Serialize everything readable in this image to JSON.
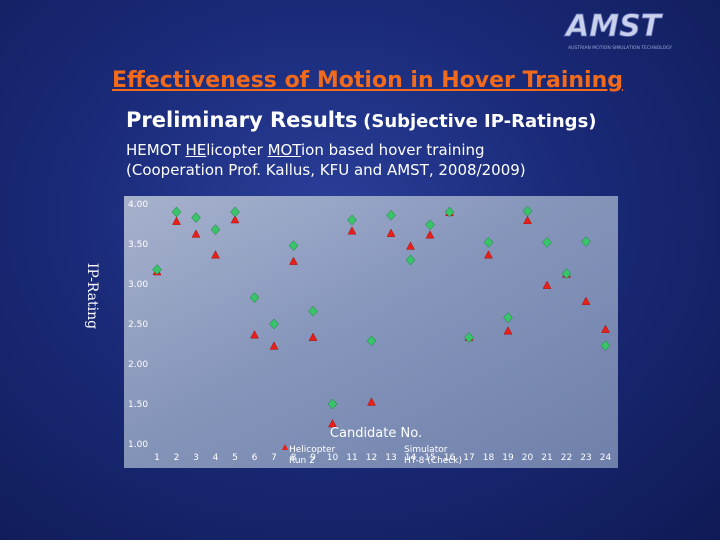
{
  "logo": {
    "text": "AMST",
    "tagline": "AUSTRIAN MOTION SIMULATION TECHNOLOGY"
  },
  "slide": {
    "title": "Effectiveness of Motion in Hover Training",
    "subtitle_main": "Preliminary Results",
    "subtitle_aside": "(Subjective IP-Ratings)",
    "desc_line1": {
      "hemot": "HEMOT",
      "he": "HE",
      "licopter": "licopter",
      "mot": "MOT",
      "rest": "ion based hover training"
    },
    "desc_line2": "(Cooperation Prof. Kallus, KFU and AMST, 2008/2009)"
  },
  "chart_data": {
    "type": "scatter",
    "ylabel": "IP-Rating",
    "xlabel": "Candidate No.",
    "ylim": [
      1.0,
      4.0
    ],
    "yticks": [
      "1.00",
      "1.50",
      "2.00",
      "2.50",
      "3.00",
      "3.50",
      "4.00"
    ],
    "x": [
      1,
      2,
      3,
      4,
      5,
      6,
      7,
      8,
      9,
      10,
      11,
      12,
      13,
      14,
      15,
      16,
      17,
      18,
      19,
      20,
      21,
      22,
      23,
      24
    ],
    "grid": false,
    "series": [
      {
        "name": "Helicopter Run 2",
        "marker": "triangle",
        "color": "#e8201a",
        "values": [
          3.15,
          3.78,
          3.62,
          3.36,
          3.8,
          2.36,
          2.22,
          3.28,
          2.33,
          1.25,
          3.66,
          1.52,
          3.63,
          3.47,
          3.61,
          3.89,
          2.33,
          3.36,
          2.41,
          3.79,
          2.98,
          3.12,
          2.78,
          2.43
        ]
      },
      {
        "name": "Simulator HT-8 (Check)",
        "marker": "diamond",
        "color": "#39c46a",
        "values": [
          3.18,
          3.9,
          3.83,
          3.68,
          3.9,
          2.83,
          2.5,
          3.48,
          2.66,
          1.5,
          3.8,
          2.29,
          3.86,
          3.3,
          3.74,
          3.9,
          2.33,
          3.52,
          2.58,
          3.91,
          3.52,
          3.13,
          3.53,
          2.23
        ]
      }
    ]
  }
}
